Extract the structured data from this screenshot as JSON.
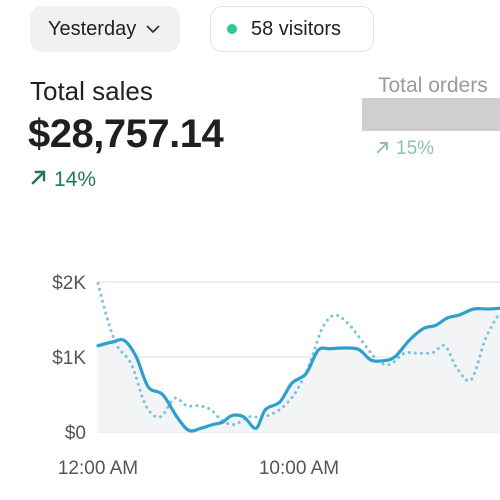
{
  "date_filter": {
    "label": "Yesterday"
  },
  "visitors": {
    "text": "58 visitors",
    "status_color": "#2ecc8a"
  },
  "total_sales": {
    "label": "Total sales",
    "value": "$28,757.14",
    "change": "14%",
    "change_color": "#1f7a4d"
  },
  "total_orders": {
    "label": "Total orders",
    "change": "15%"
  },
  "chart_data": {
    "type": "line",
    "y_ticks": [
      "$0",
      "$1K",
      "$2K"
    ],
    "x_ticks": [
      "12:00 AM",
      "10:00 AM"
    ],
    "ylim": [
      0,
      2000
    ],
    "grid": true,
    "series": [
      {
        "style": "solid",
        "color": "#2f9fd0",
        "x": [
          0,
          0.6,
          1.1,
          1.6,
          2.1,
          2.7,
          3.3,
          3.8,
          4.3,
          4.8,
          5.2,
          5.6,
          6.1,
          6.6,
          7.0,
          7.6,
          8.1,
          8.7,
          9.2,
          9.7,
          10.3,
          10.9,
          11.4,
          11.9,
          12.4,
          13.0,
          13.6,
          14.1,
          14.6,
          15.1,
          15.7,
          16.3,
          16.8
        ],
        "y": [
          1150,
          1200,
          1220,
          1000,
          600,
          500,
          200,
          20,
          50,
          100,
          130,
          220,
          200,
          50,
          300,
          400,
          650,
          780,
          1090,
          1110,
          1120,
          1100,
          960,
          950,
          1000,
          1220,
          1380,
          1420,
          1520,
          1560,
          1640,
          1640,
          1650
        ]
      },
      {
        "style": "dotted",
        "color": "#7cc2dc",
        "x": [
          0,
          0.4,
          0.8,
          1.4,
          2.0,
          2.6,
          3.2,
          3.7,
          4.2,
          4.7,
          5.2,
          5.7,
          6.3,
          6.9,
          7.6,
          8.2,
          8.7,
          9.0,
          9.4,
          9.9,
          10.5,
          11.2,
          11.7,
          12.2,
          12.8,
          13.4,
          14.0,
          14.5,
          15.0,
          15.6,
          16.2,
          16.8
        ],
        "y": [
          1980,
          1500,
          1150,
          900,
          350,
          200,
          450,
          350,
          350,
          300,
          150,
          100,
          200,
          200,
          300,
          500,
          800,
          1050,
          1400,
          1560,
          1430,
          1140,
          950,
          900,
          1050,
          1050,
          1060,
          1150,
          850,
          700,
          1250,
          1600
        ]
      }
    ]
  }
}
